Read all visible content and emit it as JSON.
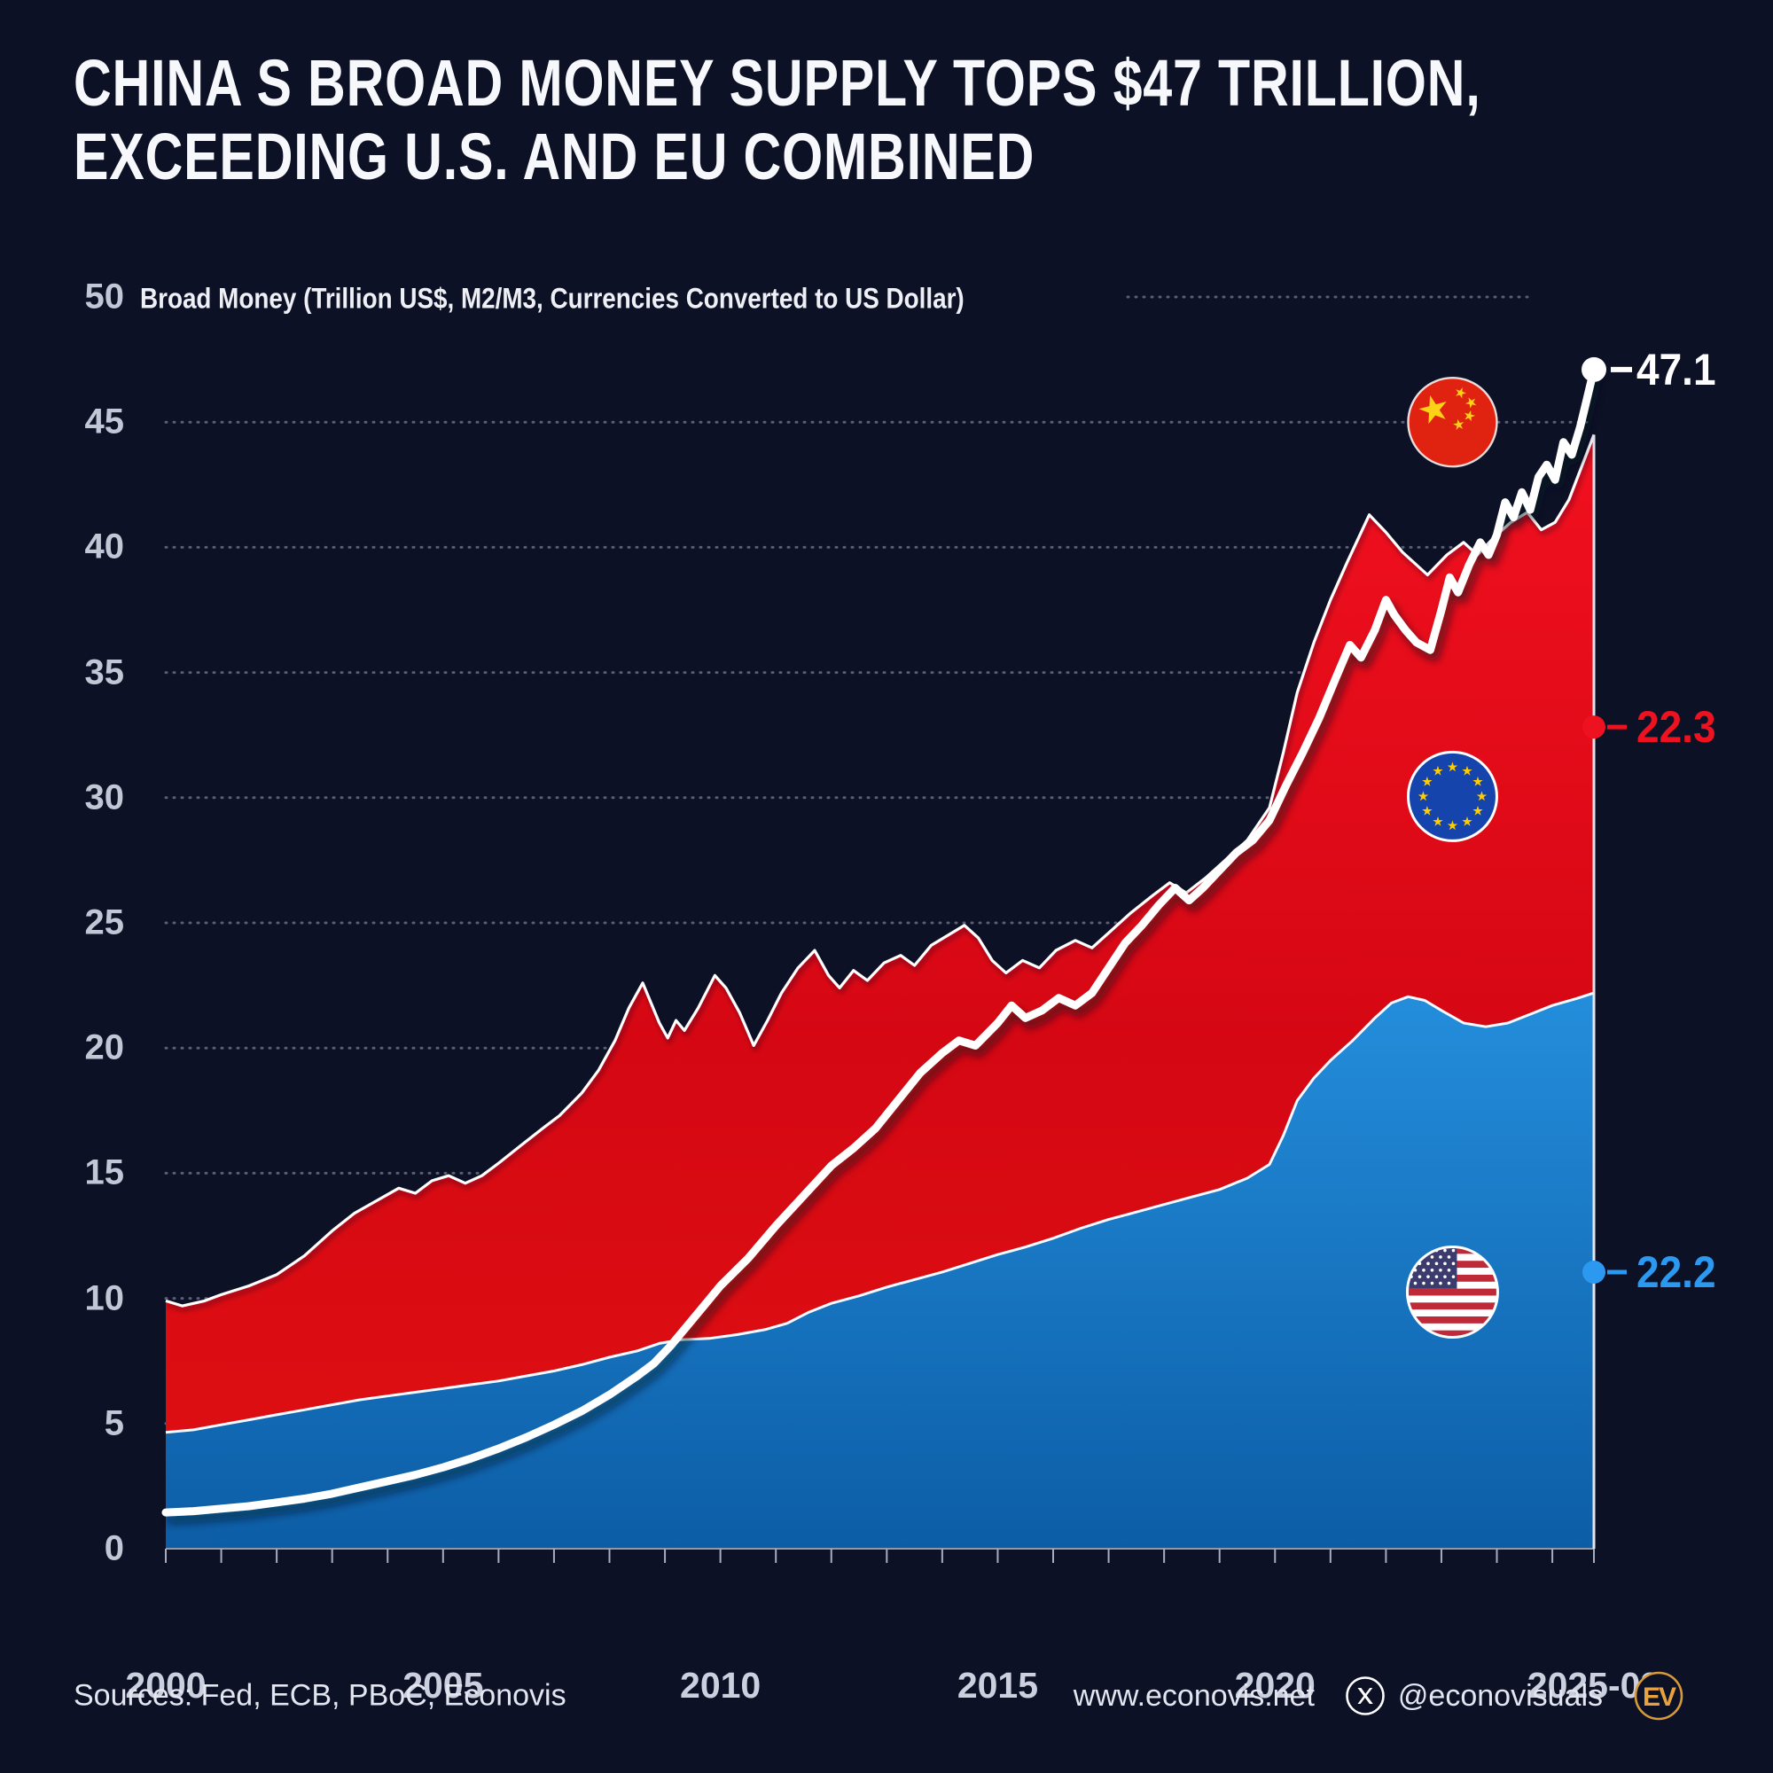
{
  "header": {
    "title_line1": "CHINA S BROAD MONEY SUPPLY TOPS $47 TRILLION,",
    "title_line2": "EXCEEDING U.S. AND EU COMBINED"
  },
  "chart_data": {
    "type": "area",
    "subtype": "stacked-area-with-line-overlay",
    "title": "CHINA S BROAD MONEY SUPPLY TOPS $47 TRILLION, EXCEEDING U.S. AND EU COMBINED",
    "subtitle": "Broad Money (Trillion US$, M2/M3, Currencies Converted to US Dollar)",
    "xlabel": "",
    "ylabel": "Trillion US$",
    "x_axis": {
      "start": 2000,
      "end": 2025.75,
      "tick_labels": [
        "2000",
        "2005",
        "2010",
        "2015",
        "2020",
        "2025-09"
      ],
      "tick_positions": [
        2000,
        2005,
        2010,
        2015,
        2020,
        2025.75
      ],
      "minor_tick_every_years": 1
    },
    "y_axis": {
      "min": 0,
      "max": 50,
      "ticks": [
        0,
        5,
        10,
        15,
        20,
        25,
        30,
        35,
        40,
        45,
        50
      ],
      "grid": "dotted"
    },
    "colors": {
      "background": "#0d1126",
      "china_line": "#ffffff",
      "us_area_top": "#2590de",
      "us_area_bottom": "#0c5da6",
      "eu_area_top": "#f2101f",
      "eu_area_mid": "#d50713",
      "eu_area_bottom": "#e01111",
      "grid": "rgba(215,220,235,0.38)"
    },
    "series": {
      "us": {
        "name": "United States (M2)",
        "flag": "us-flag",
        "end_label": {
          "text": "22.2",
          "color": "#2b99f0"
        },
        "points": [
          [
            2000,
            4.65
          ],
          [
            2000.5,
            4.75
          ],
          [
            2001,
            4.95
          ],
          [
            2001.5,
            5.15
          ],
          [
            2002,
            5.35
          ],
          [
            2002.5,
            5.55
          ],
          [
            2003,
            5.75
          ],
          [
            2003.5,
            5.95
          ],
          [
            2004,
            6.1
          ],
          [
            2004.5,
            6.25
          ],
          [
            2005,
            6.4
          ],
          [
            2005.5,
            6.55
          ],
          [
            2006,
            6.7
          ],
          [
            2006.5,
            6.9
          ],
          [
            2007,
            7.1
          ],
          [
            2007.5,
            7.35
          ],
          [
            2008,
            7.65
          ],
          [
            2008.5,
            7.9
          ],
          [
            2008.9,
            8.2
          ],
          [
            2009.3,
            8.35
          ],
          [
            2009.8,
            8.4
          ],
          [
            2010.3,
            8.55
          ],
          [
            2010.8,
            8.75
          ],
          [
            2011.2,
            9.0
          ],
          [
            2011.6,
            9.45
          ],
          [
            2012,
            9.8
          ],
          [
            2012.5,
            10.1
          ],
          [
            2013,
            10.45
          ],
          [
            2013.5,
            10.75
          ],
          [
            2014,
            11.05
          ],
          [
            2014.5,
            11.4
          ],
          [
            2015,
            11.75
          ],
          [
            2015.5,
            12.05
          ],
          [
            2016,
            12.4
          ],
          [
            2016.5,
            12.8
          ],
          [
            2017,
            13.15
          ],
          [
            2017.5,
            13.45
          ],
          [
            2018,
            13.75
          ],
          [
            2018.5,
            14.05
          ],
          [
            2019,
            14.35
          ],
          [
            2019.5,
            14.8
          ],
          [
            2019.9,
            15.35
          ],
          [
            2020.15,
            16.5
          ],
          [
            2020.4,
            17.9
          ],
          [
            2020.7,
            18.8
          ],
          [
            2021,
            19.5
          ],
          [
            2021.4,
            20.3
          ],
          [
            2021.8,
            21.2
          ],
          [
            2022.1,
            21.8
          ],
          [
            2022.4,
            22.05
          ],
          [
            2022.7,
            21.9
          ],
          [
            2023,
            21.5
          ],
          [
            2023.4,
            21.0
          ],
          [
            2023.8,
            20.85
          ],
          [
            2024.2,
            21.0
          ],
          [
            2024.6,
            21.35
          ],
          [
            2025,
            21.7
          ],
          [
            2025.4,
            21.95
          ],
          [
            2025.75,
            22.2
          ]
        ]
      },
      "eu": {
        "name": "European Union (M3), stacked on U.S.",
        "flag": "eu-flag",
        "end_label": {
          "text": "22.3",
          "color": "#ee1220"
        },
        "points_total_us_plus_eu": [
          [
            2000,
            9.9
          ],
          [
            2000.3,
            9.7
          ],
          [
            2000.7,
            9.9
          ],
          [
            2001,
            10.15
          ],
          [
            2001.5,
            10.5
          ],
          [
            2002,
            10.95
          ],
          [
            2002.5,
            11.7
          ],
          [
            2003,
            12.7
          ],
          [
            2003.4,
            13.4
          ],
          [
            2003.8,
            13.9
          ],
          [
            2004.2,
            14.4
          ],
          [
            2004.5,
            14.2
          ],
          [
            2004.8,
            14.7
          ],
          [
            2005.1,
            14.9
          ],
          [
            2005.4,
            14.6
          ],
          [
            2005.7,
            14.9
          ],
          [
            2006,
            15.4
          ],
          [
            2006.4,
            16.1
          ],
          [
            2006.8,
            16.8
          ],
          [
            2007.1,
            17.3
          ],
          [
            2007.5,
            18.2
          ],
          [
            2007.8,
            19.1
          ],
          [
            2008.1,
            20.3
          ],
          [
            2008.35,
            21.6
          ],
          [
            2008.6,
            22.6
          ],
          [
            2008.75,
            21.8
          ],
          [
            2008.9,
            21.0
          ],
          [
            2009.05,
            20.4
          ],
          [
            2009.2,
            21.1
          ],
          [
            2009.35,
            20.7
          ],
          [
            2009.6,
            21.6
          ],
          [
            2009.9,
            22.9
          ],
          [
            2010.1,
            22.4
          ],
          [
            2010.35,
            21.4
          ],
          [
            2010.6,
            20.1
          ],
          [
            2010.85,
            21.1
          ],
          [
            2011.1,
            22.2
          ],
          [
            2011.4,
            23.2
          ],
          [
            2011.7,
            23.9
          ],
          [
            2011.95,
            22.9
          ],
          [
            2012.15,
            22.4
          ],
          [
            2012.4,
            23.1
          ],
          [
            2012.65,
            22.7
          ],
          [
            2012.95,
            23.4
          ],
          [
            2013.25,
            23.7
          ],
          [
            2013.5,
            23.3
          ],
          [
            2013.8,
            24.1
          ],
          [
            2014.1,
            24.5
          ],
          [
            2014.4,
            24.9
          ],
          [
            2014.65,
            24.4
          ],
          [
            2014.9,
            23.5
          ],
          [
            2015.15,
            23.0
          ],
          [
            2015.45,
            23.5
          ],
          [
            2015.75,
            23.2
          ],
          [
            2016.05,
            23.9
          ],
          [
            2016.4,
            24.3
          ],
          [
            2016.7,
            24.0
          ],
          [
            2017,
            24.6
          ],
          [
            2017.4,
            25.4
          ],
          [
            2017.8,
            26.1
          ],
          [
            2018.1,
            26.6
          ],
          [
            2018.4,
            26.2
          ],
          [
            2018.75,
            26.8
          ],
          [
            2019.1,
            27.5
          ],
          [
            2019.5,
            28.3
          ],
          [
            2019.9,
            29.6
          ],
          [
            2020.15,
            31.8
          ],
          [
            2020.4,
            34.2
          ],
          [
            2020.7,
            36.2
          ],
          [
            2021,
            37.9
          ],
          [
            2021.3,
            39.4
          ],
          [
            2021.7,
            41.3
          ],
          [
            2022,
            40.6
          ],
          [
            2022.3,
            39.8
          ],
          [
            2022.75,
            38.9
          ],
          [
            2023.1,
            39.7
          ],
          [
            2023.4,
            40.2
          ],
          [
            2023.65,
            39.7
          ],
          [
            2023.95,
            40.4
          ],
          [
            2024.25,
            41.0
          ],
          [
            2024.55,
            41.4
          ],
          [
            2024.8,
            40.7
          ],
          [
            2025.05,
            41.0
          ],
          [
            2025.3,
            41.9
          ],
          [
            2025.75,
            44.5
          ]
        ]
      },
      "china": {
        "name": "China (M2)",
        "flag": "china-flag",
        "end_label": {
          "text": "47.1",
          "color": "#ffffff"
        },
        "points": [
          [
            2000,
            1.45
          ],
          [
            2000.5,
            1.5
          ],
          [
            2001,
            1.6
          ],
          [
            2001.5,
            1.7
          ],
          [
            2002,
            1.85
          ],
          [
            2002.5,
            2.0
          ],
          [
            2003,
            2.2
          ],
          [
            2003.5,
            2.45
          ],
          [
            2004,
            2.7
          ],
          [
            2004.5,
            2.95
          ],
          [
            2005,
            3.25
          ],
          [
            2005.5,
            3.6
          ],
          [
            2006,
            4.0
          ],
          [
            2006.5,
            4.45
          ],
          [
            2007,
            4.95
          ],
          [
            2007.5,
            5.5
          ],
          [
            2008,
            6.15
          ],
          [
            2008.5,
            6.9
          ],
          [
            2008.8,
            7.4
          ],
          [
            2009.1,
            8.1
          ],
          [
            2009.4,
            8.9
          ],
          [
            2009.7,
            9.7
          ],
          [
            2010,
            10.5
          ],
          [
            2010.5,
            11.6
          ],
          [
            2011,
            12.9
          ],
          [
            2011.5,
            14.1
          ],
          [
            2012,
            15.3
          ],
          [
            2012.4,
            16.0
          ],
          [
            2012.8,
            16.8
          ],
          [
            2013.2,
            17.9
          ],
          [
            2013.6,
            19.0
          ],
          [
            2014,
            19.8
          ],
          [
            2014.3,
            20.3
          ],
          [
            2014.6,
            20.1
          ],
          [
            2015,
            21.0
          ],
          [
            2015.25,
            21.7
          ],
          [
            2015.5,
            21.2
          ],
          [
            2015.8,
            21.5
          ],
          [
            2016.1,
            22.0
          ],
          [
            2016.4,
            21.7
          ],
          [
            2016.7,
            22.2
          ],
          [
            2017,
            23.2
          ],
          [
            2017.3,
            24.2
          ],
          [
            2017.6,
            24.9
          ],
          [
            2017.9,
            25.7
          ],
          [
            2018.2,
            26.4
          ],
          [
            2018.45,
            25.9
          ],
          [
            2018.7,
            26.4
          ],
          [
            2019,
            27.1
          ],
          [
            2019.3,
            27.8
          ],
          [
            2019.6,
            28.3
          ],
          [
            2019.9,
            29.1
          ],
          [
            2020.2,
            30.5
          ],
          [
            2020.5,
            31.8
          ],
          [
            2020.8,
            33.2
          ],
          [
            2021.1,
            34.8
          ],
          [
            2021.35,
            36.1
          ],
          [
            2021.55,
            35.6
          ],
          [
            2021.8,
            36.7
          ],
          [
            2022.0,
            37.9
          ],
          [
            2022.15,
            37.3
          ],
          [
            2022.35,
            36.7
          ],
          [
            2022.55,
            36.2
          ],
          [
            2022.8,
            35.9
          ],
          [
            2023.0,
            37.5
          ],
          [
            2023.15,
            38.8
          ],
          [
            2023.3,
            38.2
          ],
          [
            2023.5,
            39.3
          ],
          [
            2023.7,
            40.2
          ],
          [
            2023.85,
            39.7
          ],
          [
            2024.0,
            40.5
          ],
          [
            2024.15,
            41.8
          ],
          [
            2024.3,
            41.2
          ],
          [
            2024.45,
            42.2
          ],
          [
            2024.6,
            41.5
          ],
          [
            2024.75,
            42.8
          ],
          [
            2024.9,
            43.3
          ],
          [
            2025.05,
            42.7
          ],
          [
            2025.2,
            44.2
          ],
          [
            2025.35,
            43.7
          ],
          [
            2025.5,
            44.8
          ],
          [
            2025.62,
            45.9
          ],
          [
            2025.75,
            47.1
          ]
        ]
      }
    },
    "annotations": {
      "flags": [
        {
          "id": "china-flag",
          "year": 2023.2,
          "value": 45.0
        },
        {
          "id": "eu-flag",
          "year": 2023.2,
          "value": 30.05
        },
        {
          "id": "us-flag",
          "year": 2023.2,
          "value": 10.25
        }
      ],
      "end_markers": [
        {
          "series": "china",
          "value_at": 47.1,
          "dot_color": "#ffffff"
        },
        {
          "series": "eu",
          "value_at": 32.82,
          "dot_color": "#ee1220"
        },
        {
          "series": "us",
          "value_at": 11.05,
          "dot_color": "#2b99f0"
        }
      ],
      "legend_position": "right-edge"
    }
  },
  "footer": {
    "sources": "Sources: Fed, ECB, PBoC, Econovis",
    "website": "www.econovis.net",
    "social_icon": "x-logo-icon",
    "social_handle": "@econovisuals",
    "badge_text": "EV"
  }
}
